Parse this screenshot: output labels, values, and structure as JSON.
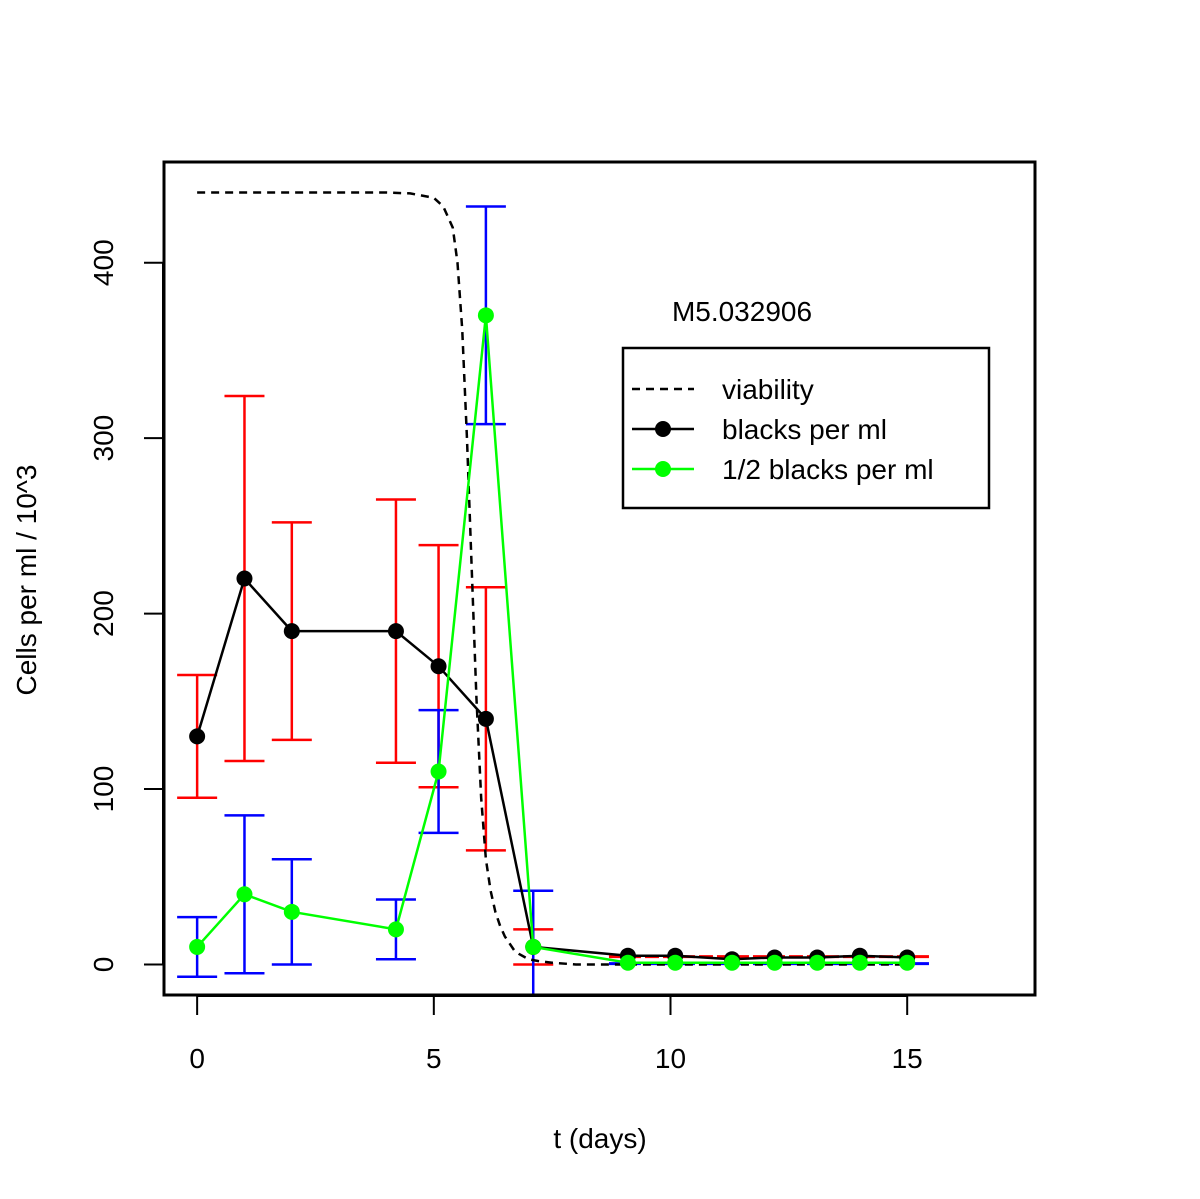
{
  "chart_data": {
    "type": "line",
    "title": "M5.032906",
    "xlabel": "t (days)",
    "ylabel": "Cells per ml / 10^3",
    "xlim": [
      -0.7,
      17.7
    ],
    "ylim": [
      -17.4,
      457.4
    ],
    "x_ticks": [
      "0",
      "5",
      "10",
      "15"
    ],
    "x_tick_values": [
      0,
      5,
      10,
      15
    ],
    "y_ticks": [
      "0",
      "100",
      "200",
      "300",
      "400"
    ],
    "y_tick_values": [
      0,
      100,
      200,
      300,
      400
    ],
    "grid": false,
    "legend_position": "top-right",
    "series": [
      {
        "name": "viability",
        "style": "dashed",
        "color": "#000000",
        "x": [
          0,
          1,
          2,
          3,
          4,
          4.5,
          5,
          5.2,
          5.4,
          5.5,
          5.6,
          5.7,
          5.8,
          5.9,
          6.0,
          6.1,
          6.2,
          6.3,
          6.4,
          6.5,
          6.6,
          6.7,
          6.8,
          7.0,
          7.2,
          7.5,
          8,
          9,
          10,
          11,
          12,
          13,
          14,
          15
        ],
        "values": [
          440,
          440,
          440,
          440,
          440,
          439.5,
          437,
          432,
          420,
          400,
          362,
          300,
          226,
          152,
          95,
          60,
          42,
          30,
          22,
          16,
          12,
          8,
          6,
          3,
          2,
          1,
          0,
          0,
          0,
          0,
          0,
          0,
          0,
          0
        ]
      },
      {
        "name": "blacks per ml",
        "color": "#000000",
        "x": [
          0,
          1,
          2,
          4.2,
          5.1,
          6.1,
          7.1,
          9.1,
          10.1,
          11.3,
          12.2,
          13.1,
          14,
          15
        ],
        "values": [
          130,
          220,
          190,
          190,
          170,
          140,
          10,
          5,
          5,
          3,
          4,
          4,
          5,
          4
        ],
        "errors": [
          35,
          104,
          62,
          75,
          69,
          75,
          10,
          1,
          1,
          1,
          1,
          1,
          1,
          1
        ],
        "error_color": "#ff0000"
      },
      {
        "name": "1/2 blacks per ml",
        "color": "#00ff00",
        "x": [
          0,
          1,
          2,
          4.2,
          5.1,
          6.1,
          7.1,
          9.1,
          10.1,
          11.3,
          12.2,
          13.1,
          14,
          15
        ],
        "values": [
          10,
          40,
          30,
          20,
          110,
          370,
          10,
          1,
          1,
          1,
          1,
          1,
          1,
          1
        ],
        "errors": [
          17,
          45,
          30,
          17,
          35,
          62,
          32,
          1,
          1,
          1,
          1,
          1,
          1,
          1
        ],
        "error_color": "#0000ff"
      }
    ]
  }
}
